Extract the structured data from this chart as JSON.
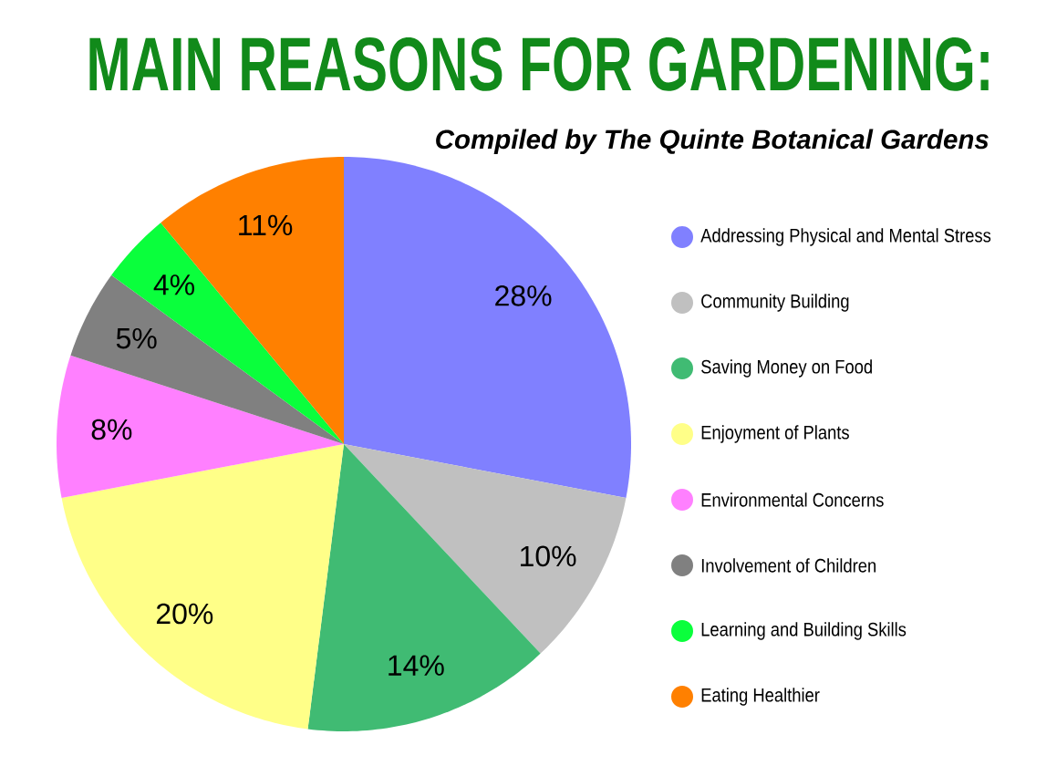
{
  "chart_data": {
    "type": "pie",
    "title": "MAIN REASONS FOR GARDENING:",
    "subtitle": "Compiled by The Quinte Botanical Gardens",
    "categories": [
      "Addressing Physical and Mental Stress",
      "Community Building",
      "Saving Money on Food",
      "Enjoyment of Plants",
      "Environmental Concerns",
      "Involvement of Children",
      "Learning and Building Skills",
      "Eating Healthier"
    ],
    "values": [
      28,
      10,
      14,
      20,
      8,
      5,
      4,
      11
    ],
    "value_labels": [
      "28%",
      "10%",
      "14%",
      "20%",
      "8%",
      "5%",
      "4%",
      "11%"
    ],
    "colors": [
      "#8080ff",
      "#c0c0c0",
      "#40bb73",
      "#ffff88",
      "#ff80ff",
      "#808080",
      "#0aff3c",
      "#ff8000"
    ],
    "legend": "right"
  }
}
